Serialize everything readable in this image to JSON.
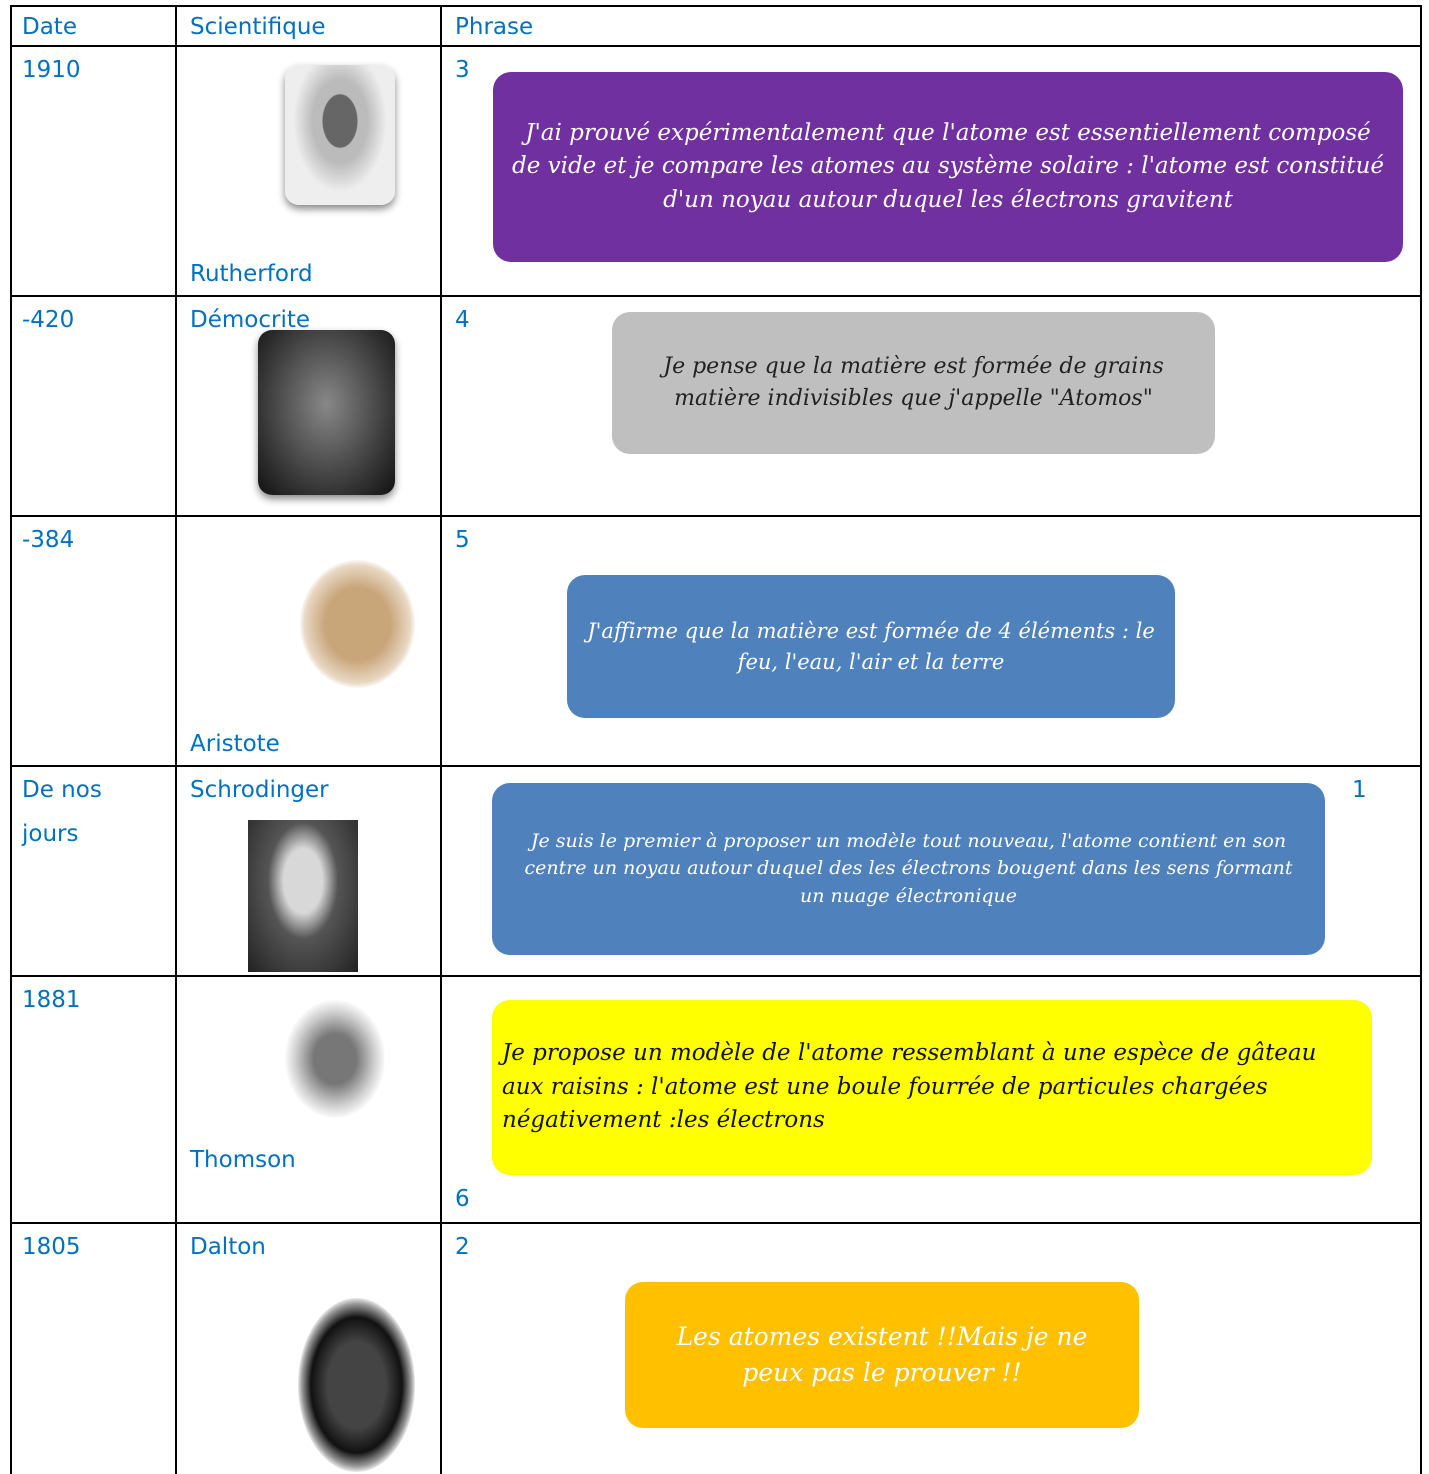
{
  "table": {
    "headers": [
      "Date",
      "Scientifique",
      "Phrase"
    ],
    "rows": [
      {
        "date": "1910",
        "scientist": "Rutherford",
        "number": "3",
        "phrase": "J'ai prouvé expérimentalement que l'atome est essentiellement composé de vide et je compare les atomes au système solaire : l'atome est constitué d'un noyau autour duquel les électrons gravitent"
      },
      {
        "date": "-420",
        "scientist": "Démocrite",
        "number": "4",
        "phrase": "Je pense que la matière est formée de grains matière indivisibles que j'appelle \"Atomos\""
      },
      {
        "date": "-384",
        "scientist": "Aristote",
        "number": "5",
        "phrase": "J'affirme que la matière est formée de 4 éléments : le feu, l'eau, l'air et la terre"
      },
      {
        "date": "De nos jours",
        "scientist": "Schrodinger",
        "number": "1",
        "phrase": "Je suis le premier à proposer un modèle tout nouveau, l'atome contient en son centre un noyau autour duquel des les électrons bougent dans les sens formant un nuage électronique"
      },
      {
        "date": "1881",
        "scientist": "Thomson",
        "number": "6",
        "phrase": "Je propose un modèle de l'atome ressemblant à une espèce de gâteau aux raisins : l'atome est une boule fourrée de particules chargées négativement :les électrons"
      },
      {
        "date": "1805",
        "scientist": "Dalton",
        "number": "2",
        "phrase": "Les atomes existent !!Mais je ne peux pas le prouver !!"
      }
    ]
  }
}
